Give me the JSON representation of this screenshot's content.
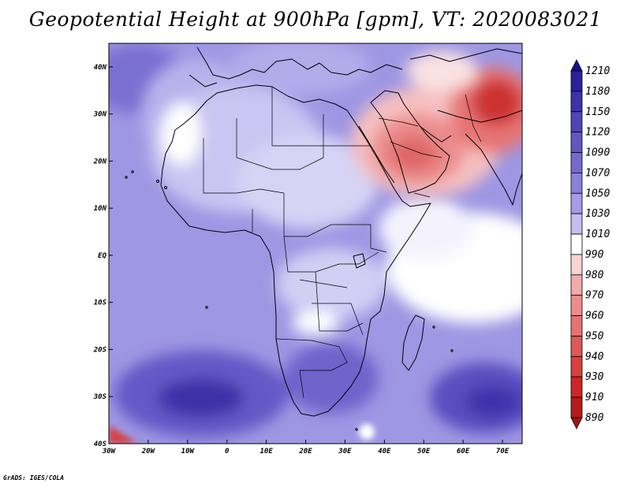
{
  "title": "Geopotential Height at 900hPa [gpm], VT: 2020083021",
  "footer": "GrADS: IGES/COLA",
  "map": {
    "lat_labels": [
      "40N",
      "30N",
      "20N",
      "10N",
      "EQ",
      "10S",
      "20S",
      "30S",
      "40S"
    ],
    "lon_labels": [
      "30W",
      "20W",
      "10W",
      "0",
      "10E",
      "20E",
      "30E",
      "40E",
      "50E",
      "60E",
      "70E"
    ],
    "lat_range": [
      -40,
      45
    ],
    "lon_range": [
      -30,
      75
    ]
  },
  "colorbar": {
    "levels": [
      "1210",
      "1180",
      "1150",
      "1120",
      "1090",
      "1070",
      "1050",
      "1030",
      "1010",
      "990",
      "980",
      "970",
      "960",
      "950",
      "940",
      "930",
      "910",
      "890"
    ],
    "colors": [
      "#161093",
      "#2a229d",
      "#3d33aa",
      "#5045b7",
      "#6057c3",
      "#7569cf",
      "#8b80da",
      "#a59ce4",
      "#c4bfef",
      "#ffffff",
      "#f9d2d2",
      "#f2aaaa",
      "#ec8d8d",
      "#e67272",
      "#df5757",
      "#d84040",
      "#cc2727",
      "#b51d1d",
      "#9c1515"
    ]
  }
}
